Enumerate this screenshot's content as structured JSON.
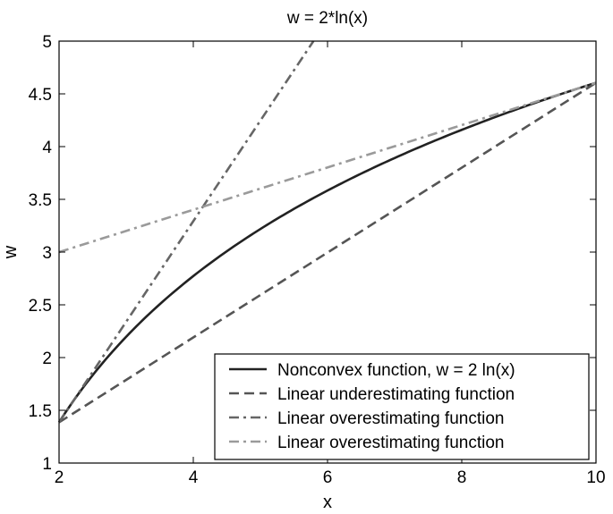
{
  "chart_data": {
    "type": "line",
    "title": "w = 2*ln(x)",
    "xlabel": "x",
    "ylabel": "w",
    "xlim": [
      2,
      10
    ],
    "ylim": [
      1,
      5
    ],
    "xticks": [
      2,
      4,
      6,
      8,
      10
    ],
    "xtick_labels": [
      "2",
      "4",
      "6",
      "8",
      "10"
    ],
    "yticks": [
      1,
      1.5,
      2,
      2.5,
      3,
      3.5,
      4,
      4.5,
      5
    ],
    "ytick_labels": [
      "1",
      "1.5",
      "2",
      "2.5",
      "3",
      "3.5",
      "4",
      "4.5",
      "5"
    ],
    "grid": false,
    "legend_position": "bottom-right",
    "series": [
      {
        "name": "Nonconvex function, w = 2 ln(x)",
        "style": "solid",
        "color": "#222222",
        "x": [
          2,
          2.5,
          3,
          3.5,
          4,
          4.5,
          5,
          5.5,
          6,
          6.5,
          7,
          7.5,
          8,
          8.5,
          9,
          9.5,
          10
        ],
        "y": [
          1.386,
          1.833,
          2.197,
          2.506,
          2.773,
          3.008,
          3.219,
          3.409,
          3.584,
          3.744,
          3.892,
          4.03,
          4.159,
          4.28,
          4.394,
          4.503,
          4.605
        ]
      },
      {
        "name": "Linear underestimating function",
        "style": "dashed",
        "color": "#555555",
        "x": [
          2,
          10
        ],
        "y": [
          1.386,
          4.605
        ]
      },
      {
        "name": "Linear overestimating function",
        "style": "dashdot",
        "color": "#666666",
        "x": [
          2,
          5.79
        ],
        "y": [
          1.386,
          5
        ]
      },
      {
        "name": "Linear overestimating function",
        "style": "dashdot",
        "color": "#9a9a9a",
        "x": [
          2,
          10
        ],
        "y": [
          3.0,
          4.605
        ]
      }
    ]
  }
}
